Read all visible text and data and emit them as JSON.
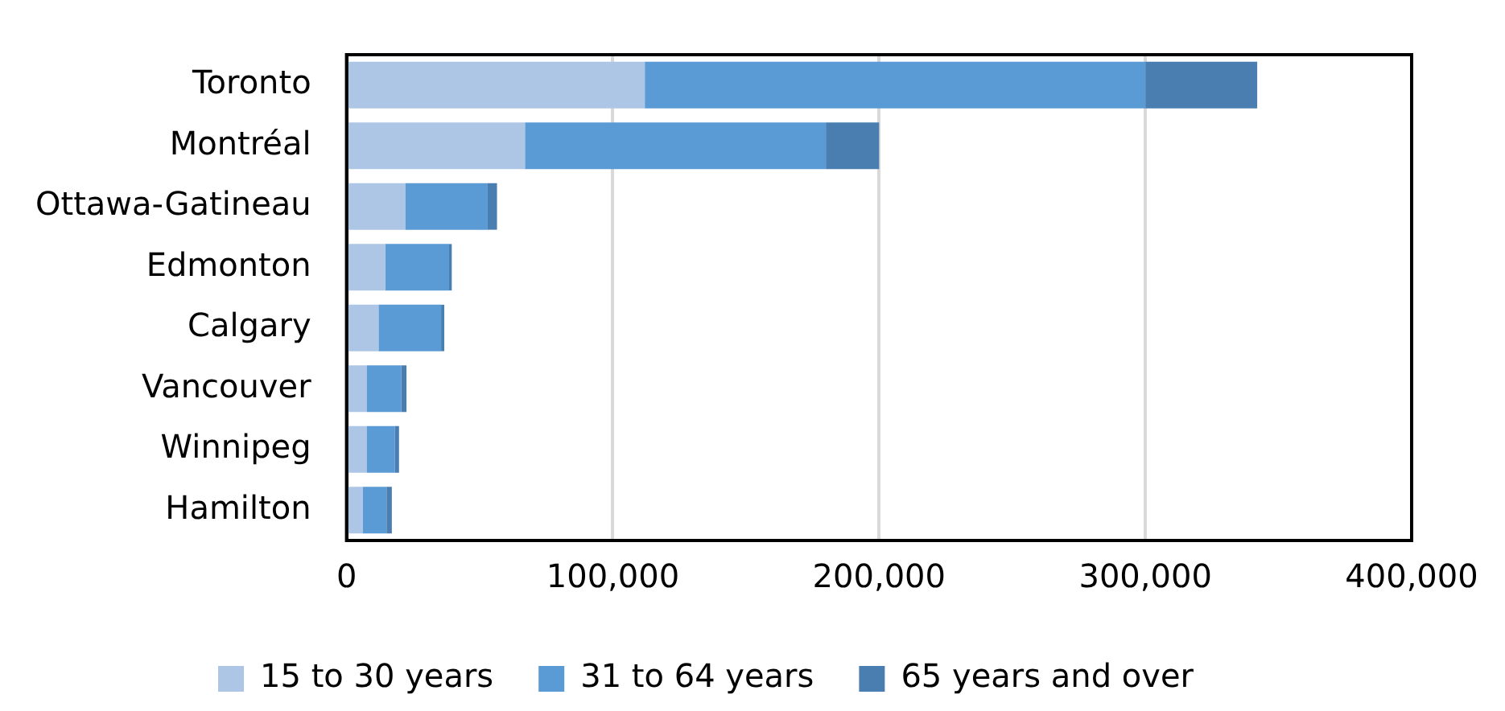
{
  "chart_data": {
    "type": "bar",
    "orientation": "horizontal",
    "stacked": true,
    "categories": [
      "Toronto",
      "Montréal",
      "Ottawa-Gatineau",
      "Edmonton",
      "Calgary",
      "Vancouver",
      "Winnipeg",
      "Hamilton"
    ],
    "series": [
      {
        "name": "15 to 30 years",
        "color": "#adc6e6",
        "values": [
          112000,
          67000,
          22000,
          14500,
          12000,
          7500,
          7500,
          6000
        ]
      },
      {
        "name": "31 to 64 years",
        "color": "#5b9bd5",
        "values": [
          188000,
          113000,
          31000,
          24000,
          23500,
          13000,
          10700,
          9000
        ]
      },
      {
        "name": "65 years and over",
        "color": "#4a7eb0",
        "values": [
          42000,
          20000,
          3500,
          1000,
          1200,
          2000,
          1500,
          2000
        ]
      }
    ],
    "xlim": [
      0,
      400000
    ],
    "xticks": [
      0,
      {
        "value": 100000,
        "label": "100,000"
      },
      {
        "value": 200000,
        "label": "200,000"
      },
      {
        "value": 300000,
        "label": "300,000"
      },
      {
        "value": 400000,
        "label": "400,000"
      }
    ],
    "grid": "x",
    "legend": "bottom"
  }
}
